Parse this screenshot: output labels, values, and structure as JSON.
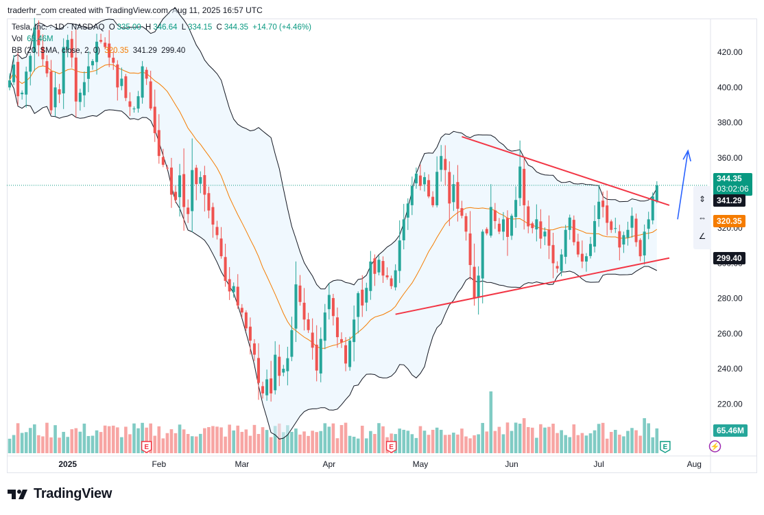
{
  "credit": "traderhr_com created with TradingView.com, Aug 11, 2025 16:57 UTC",
  "legend": {
    "symbol": "Tesla, Inc. · 1D · NASDAQ",
    "o_label": "O",
    "o_value": "335.00",
    "h_label": "H",
    "h_value": "346.64",
    "l_label": "L",
    "l_value": "334.15",
    "c_label": "C",
    "c_value": "344.35",
    "change": "+14.70 (+4.46%)",
    "vol_label": "Vol",
    "vol_value": "65.46M",
    "bb_label": "BB (20, SMA, close, 2, 0)",
    "bb_basis": "320.35",
    "bb_upper": "341.29",
    "bb_lower": "299.40"
  },
  "price_tags": {
    "last": "344.35",
    "countdown": "03:02:06",
    "upper": "341.29",
    "basis": "320.35",
    "lower": "299.40",
    "volume": "65.46M"
  },
  "footer": {
    "brand": "TradingView"
  },
  "colors": {
    "up": "#26a69a",
    "down": "#ef5350",
    "basis": "#f57c00",
    "band": "#131722",
    "band_fill": "#e3f2fd",
    "trendline": "#f23645",
    "arrow": "#2962ff",
    "vol_up": "#80cbc4",
    "vol_down": "#f7a5a3"
  },
  "events": [
    {
      "label": "E",
      "type": "earnings",
      "date": "2025-01-29"
    },
    {
      "label": "E",
      "type": "earnings",
      "date": "2025-04-22"
    },
    {
      "label": "E",
      "type": "earnings",
      "date": "2025-07-23"
    },
    {
      "label": "E",
      "type": "earnings",
      "date": "2025-08-08"
    }
  ],
  "chart_data": {
    "type": "candlestick",
    "title": "Tesla, Inc. · 1D · NASDAQ",
    "ylim": [
      192,
      438
    ],
    "y_ticks": [
      420,
      400,
      380,
      360,
      340,
      320,
      300,
      280,
      260,
      240,
      220
    ],
    "y_tick_labels": [
      "420.00",
      "400.00",
      "380.00",
      "360.00",
      "340.00",
      "320.00",
      "300.00",
      "280.00",
      "260.00",
      "240.00",
      "220.00"
    ],
    "x_tick_labels": [
      {
        "label": "2025",
        "date": "2025-01-02",
        "bold": true
      },
      {
        "label": "Feb",
        "date": "2025-02-03"
      },
      {
        "label": "Mar",
        "date": "2025-03-03"
      },
      {
        "label": "Apr",
        "date": "2025-04-01"
      },
      {
        "label": "May",
        "date": "2025-05-01"
      },
      {
        "label": "Jun",
        "date": "2025-06-02"
      },
      {
        "label": "Jul",
        "date": "2025-07-01"
      },
      {
        "label": "Aug",
        "date": "2025-08-01"
      }
    ],
    "grid": false,
    "last_price_line": 344.35,
    "closes": [
      404,
      413,
      395,
      397,
      409,
      418,
      434,
      424,
      416,
      408,
      387,
      400,
      396,
      423,
      427,
      417,
      392,
      397,
      403,
      412,
      415,
      426,
      426,
      423,
      417,
      414,
      400,
      405,
      394,
      389,
      388,
      395,
      412,
      405,
      388,
      374,
      361,
      356,
      354,
      339,
      336,
      350,
      332,
      328,
      353,
      345,
      349,
      339,
      330,
      322,
      316,
      304,
      290,
      284,
      287,
      276,
      272,
      263,
      256,
      248,
      232,
      226,
      234,
      226,
      248,
      236,
      240,
      246,
      262,
      288,
      278,
      268,
      262,
      252,
      239,
      257,
      272,
      282,
      270,
      258,
      255,
      243,
      256,
      268,
      283,
      276,
      286,
      301,
      294,
      302,
      293,
      292,
      287,
      296,
      313,
      325,
      334,
      344,
      351,
      344,
      349,
      338,
      333,
      352,
      361,
      353,
      334,
      345,
      331,
      327,
      318,
      299,
      280,
      293,
      318,
      317,
      332,
      324,
      318,
      325,
      315,
      327,
      336,
      355,
      333,
      321,
      320,
      325,
      314,
      318,
      310,
      300,
      297,
      305,
      319,
      326,
      312,
      305,
      301,
      304,
      311,
      324,
      335,
      332,
      323,
      319,
      320,
      309,
      316,
      319,
      327,
      312,
      304,
      318,
      325,
      338,
      344
    ]
  }
}
